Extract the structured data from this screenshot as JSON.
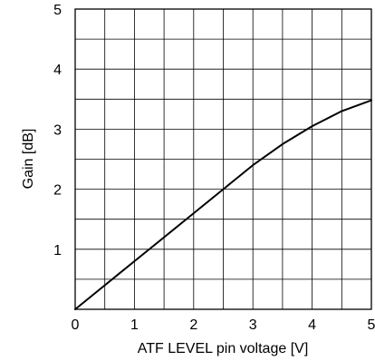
{
  "chart_data": {
    "type": "line",
    "title": "",
    "xlabel": "ATF LEVEL pin voltage [V]",
    "ylabel": "Gain [dB]",
    "xlim": [
      0,
      5
    ],
    "ylim": [
      0,
      5
    ],
    "x_ticks": [
      "0",
      "1",
      "2",
      "3",
      "4",
      "5"
    ],
    "y_ticks": [
      "1",
      "2",
      "3",
      "4",
      "5"
    ],
    "grid": true,
    "minor_grid_step": 0.5,
    "series": [
      {
        "x": [
          0,
          0.5,
          1.0,
          1.5,
          2.0,
          2.5,
          3.0,
          3.5,
          4.0,
          4.5,
          5.0
        ],
        "y": [
          0,
          0.4,
          0.8,
          1.2,
          1.6,
          2.0,
          2.4,
          2.75,
          3.05,
          3.3,
          3.48
        ],
        "color": "#000000"
      }
    ]
  }
}
